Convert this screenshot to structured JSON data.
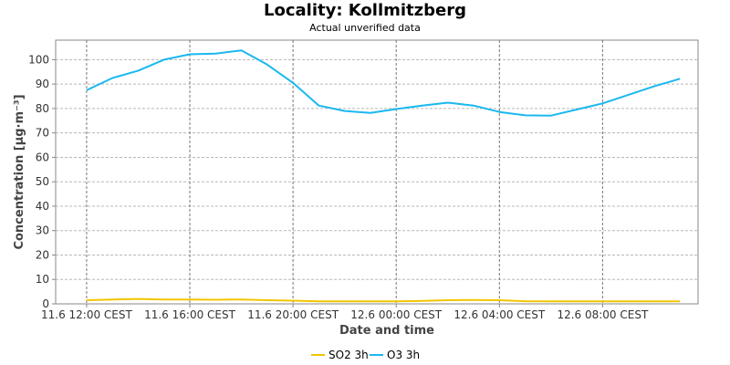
{
  "chart_data": {
    "type": "line",
    "title": "Locality: Kollmitzberg",
    "subtitle": "Actual unverified data",
    "xlabel": "Date and time",
    "ylabel": "Concentration [µg·m⁻³]",
    "ylim": [
      0,
      108
    ],
    "yticks": [
      0,
      10,
      20,
      30,
      40,
      50,
      60,
      70,
      80,
      90,
      100
    ],
    "xticks": [
      {
        "label": "11.6 12:00 CEST",
        "t": 0
      },
      {
        "label": "11.6 16:00 CEST",
        "t": 4
      },
      {
        "label": "11.6 20:00 CEST",
        "t": 8
      },
      {
        "label": "12.6 00:00 CEST",
        "t": 12
      },
      {
        "label": "12.6 04:00 CEST",
        "t": 16
      },
      {
        "label": "12.6 08:00 CEST",
        "t": 20
      }
    ],
    "xlim": [
      -1.2,
      23.7
    ],
    "grid": true,
    "legend_position": "bottom",
    "x": [
      0,
      1,
      2,
      3,
      4,
      5,
      6,
      7,
      8,
      9,
      10,
      11,
      12,
      13,
      14,
      15,
      16,
      17,
      18,
      19,
      20,
      21,
      22,
      23
    ],
    "series": [
      {
        "name": "SO2 3h",
        "color": "#f2c500",
        "values": [
          1.5,
          1.8,
          2.0,
          1.8,
          1.8,
          1.7,
          1.8,
          1.5,
          1.3,
          1.0,
          1.0,
          1.0,
          1.0,
          1.2,
          1.5,
          1.6,
          1.5,
          1.1,
          1.0,
          1.0,
          1.0,
          1.0,
          1.0,
          1.0
        ]
      },
      {
        "name": "O3 3h",
        "color": "#1ab8f0",
        "values": [
          87.5,
          92.5,
          95.5,
          100,
          102.2,
          102.5,
          103.8,
          98,
          90.5,
          81.2,
          79,
          78.2,
          79.8,
          81.2,
          82.4,
          81.2,
          78.6,
          77.2,
          77.1,
          79.6,
          82.1,
          85.6,
          89.1,
          92.2
        ]
      }
    ]
  }
}
